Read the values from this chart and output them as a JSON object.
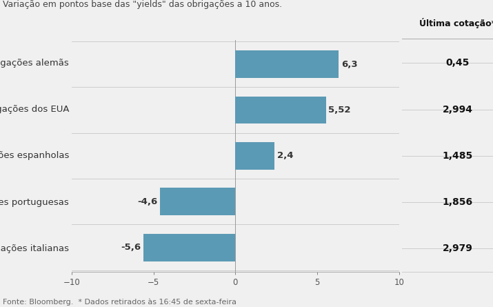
{
  "subtitle": "Variação em pontos base das \"yields\" das obrigações a 10 anos.",
  "footer": "Fonte: Bloomberg.  * Dados retirados às 16:45 de sexta-feira",
  "ultima_cotacao_label": "Última cotação*",
  "categories": [
    "Obrigações alemãs",
    "Obrigações dos EUA",
    "Obrigações espanholas",
    "Obrigações portuguesas",
    "Obrigações italianas"
  ],
  "values": [
    6.3,
    5.52,
    2.4,
    -4.6,
    -5.6
  ],
  "ultima_cotacao": [
    "0,45",
    "2,994",
    "1,485",
    "1,856",
    "2,979"
  ],
  "bar_color": "#5b9ab5",
  "xlim": [
    -10,
    10
  ],
  "xticks": [
    -10,
    -5,
    0,
    5,
    10
  ],
  "background_color": "#f0f0f0",
  "axes_background": "#f0f0f0",
  "subtitle_fontsize": 9,
  "category_fontsize": 9.5,
  "value_fontsize": 9.5,
  "footer_fontsize": 8,
  "tick_fontsize": 8.5,
  "cotacao_fontsize": 10,
  "header_fontsize": 9
}
